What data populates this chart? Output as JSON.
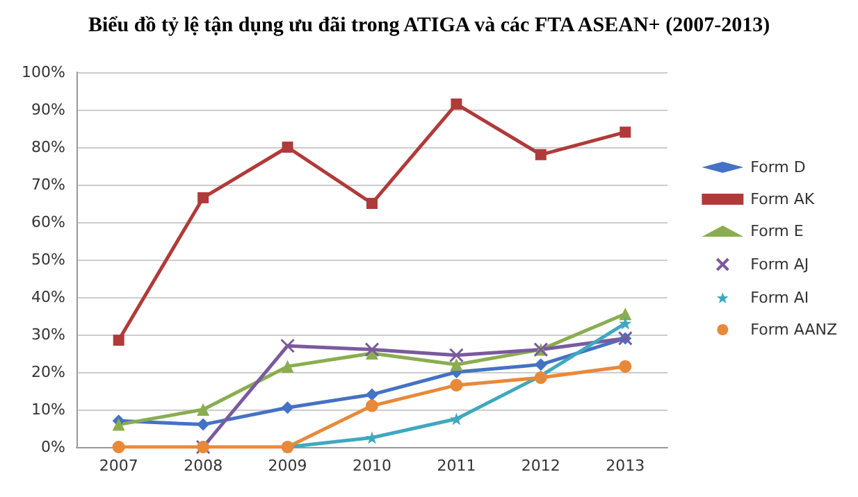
{
  "chart_data": {
    "type": "line",
    "title": "Biểu đồ tỷ lệ tận dụng ưu đãi trong ATIGA và các FTA ASEAN+ (2007-2013)",
    "categories": [
      "2007",
      "2008",
      "2009",
      "2010",
      "2011",
      "2012",
      "2013"
    ],
    "series": [
      {
        "name": "Form D",
        "color": "#4472c4",
        "marker": "diamond",
        "values": [
          7,
          6,
          10.5,
          14,
          20,
          22,
          29
        ]
      },
      {
        "name": "Form AK",
        "color": "#b03a3a",
        "marker": "square",
        "values": [
          28.5,
          66.5,
          80,
          65,
          91.5,
          78,
          84
        ]
      },
      {
        "name": "Form E",
        "color": "#8aad4f",
        "marker": "triangle",
        "values": [
          6,
          10,
          21.5,
          25,
          22,
          26,
          35.5
        ]
      },
      {
        "name": "Form AJ",
        "color": "#7a5a9e",
        "marker": "cross",
        "values": [
          null,
          0,
          27,
          26,
          24.5,
          26,
          29
        ]
      },
      {
        "name": "Form AI",
        "color": "#3fa8bf",
        "marker": "star",
        "values": [
          null,
          null,
          0,
          2.5,
          7.5,
          19,
          33
        ]
      },
      {
        "name": "Form AANZ",
        "color": "#e8893a",
        "marker": "circle",
        "values": [
          0,
          0,
          0,
          11,
          16.5,
          18.5,
          21.5
        ]
      }
    ],
    "ylim": [
      0,
      100
    ],
    "yticks": [
      {
        "value": 0,
        "label": "0%"
      },
      {
        "value": 10,
        "label": "10%"
      },
      {
        "value": 20,
        "label": "20%"
      },
      {
        "value": 30,
        "label": "30%"
      },
      {
        "value": 40,
        "label": "40%"
      },
      {
        "value": 50,
        "label": "50%"
      },
      {
        "value": 60,
        "label": "60%"
      },
      {
        "value": 70,
        "label": "70%"
      },
      {
        "value": 80,
        "label": "80%"
      },
      {
        "value": 90,
        "label": "90%"
      },
      {
        "value": 100,
        "label": "100%"
      }
    ],
    "grid": "y",
    "legend": "right",
    "line_style": "solid"
  }
}
